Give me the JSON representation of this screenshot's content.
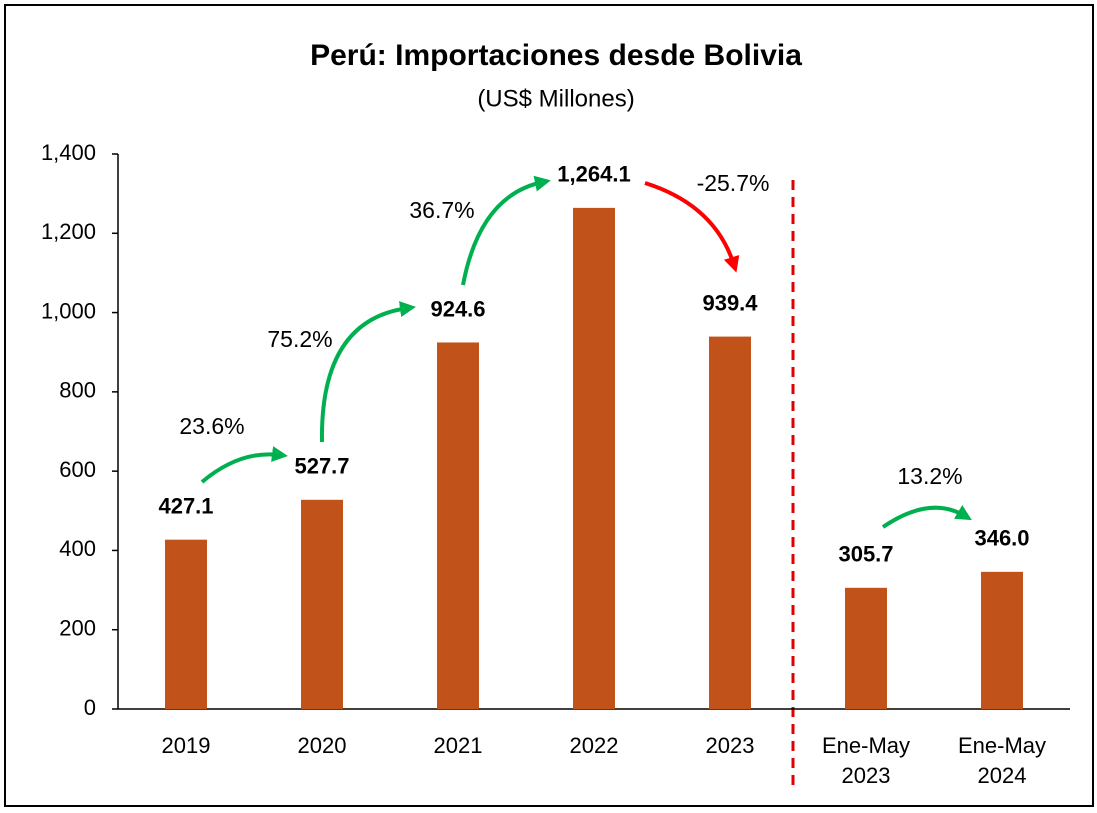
{
  "chart_data": {
    "type": "bar",
    "title": "Perú: Importaciones desde Bolivia",
    "subtitle": "(US$ Millones)",
    "categories": [
      "2019",
      "2020",
      "2021",
      "2022",
      "2023",
      "Ene-May 2023",
      "Ene-May 2024"
    ],
    "values": [
      427.1,
      527.7,
      924.6,
      1264.1,
      939.4,
      305.7,
      346.0
    ],
    "value_labels": [
      "427.1",
      "527.7",
      "924.6",
      "1,264.1",
      "939.4",
      "305.7",
      "346.0"
    ],
    "color": "#c0521a",
    "ylim": [
      0,
      1400
    ],
    "yticks": [
      0,
      200,
      400,
      600,
      800,
      {
        "value": 1000,
        "label": "1,000"
      },
      {
        "value": 1200,
        "label": "1,200"
      },
      {
        "value": 1400,
        "label": "1,400"
      }
    ],
    "annotations": [
      "23.6%",
      "75.2%",
      "36.7%",
      "-25.7%",
      "13.2%"
    ]
  }
}
